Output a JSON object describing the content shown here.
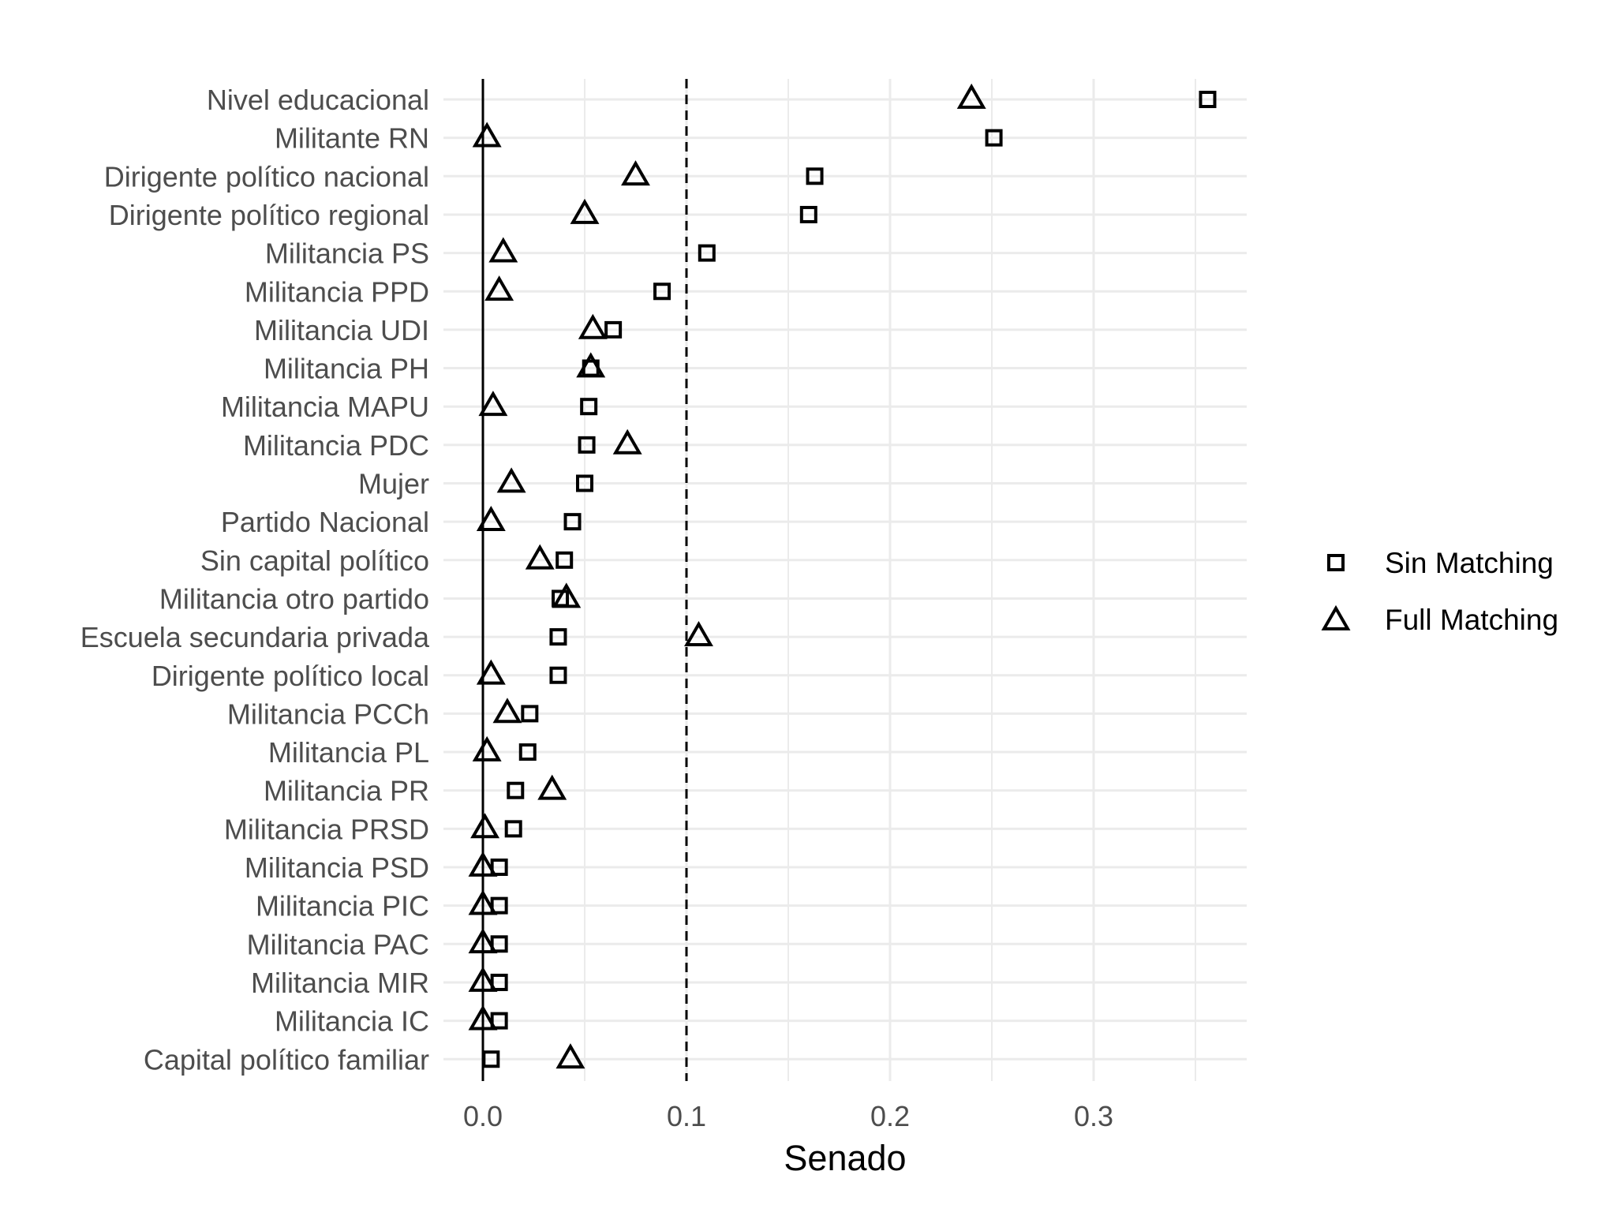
{
  "chart_data": {
    "type": "scatter",
    "xlabel": "Senado",
    "x_ticks": [
      0.0,
      0.1,
      0.2,
      0.3
    ],
    "x_tick_labels": [
      "0.0",
      "0.1",
      "0.2",
      "0.3"
    ],
    "xlim": [
      -0.019,
      0.375
    ],
    "reference_lines": [
      {
        "x": 0.0,
        "style": "solid"
      },
      {
        "x": 0.1,
        "style": "dashed"
      }
    ],
    "grid": true,
    "legend_position": "right",
    "categories": [
      "Nivel educacional",
      "Militante RN",
      "Dirigente político nacional",
      "Dirigente político regional",
      "Militancia PS",
      "Militancia PPD",
      "Militancia UDI",
      "Militancia PH",
      "Militancia MAPU",
      "Militancia PDC",
      "Mujer",
      "Partido Nacional",
      "Sin capital político",
      "Militancia otro partido",
      "Escuela secundaria privada",
      "Dirigente político local",
      "Militancia PCCh",
      "Militancia PL",
      "Militancia PR",
      "Militancia PRSD",
      "Militancia PSD",
      "Militancia PIC",
      "Militancia PAC",
      "Militancia MIR",
      "Militancia IC",
      "Capital político familiar"
    ],
    "series": [
      {
        "name": "Sin Matching",
        "marker": "square",
        "values": [
          0.356,
          0.251,
          0.163,
          0.16,
          0.11,
          0.088,
          0.064,
          0.053,
          0.052,
          0.051,
          0.05,
          0.044,
          0.04,
          0.038,
          0.037,
          0.037,
          0.023,
          0.022,
          0.016,
          0.015,
          0.008,
          0.008,
          0.008,
          0.008,
          0.008,
          0.004
        ]
      },
      {
        "name": "Full Matching",
        "marker": "triangle",
        "values": [
          0.24,
          0.002,
          0.075,
          0.05,
          0.01,
          0.008,
          0.054,
          0.053,
          0.005,
          0.071,
          0.014,
          0.004,
          0.028,
          0.041,
          0.106,
          0.004,
          0.012,
          0.002,
          0.034,
          0.001,
          0.0,
          0.0,
          0.0,
          0.0,
          0.0,
          0.043
        ]
      }
    ]
  }
}
